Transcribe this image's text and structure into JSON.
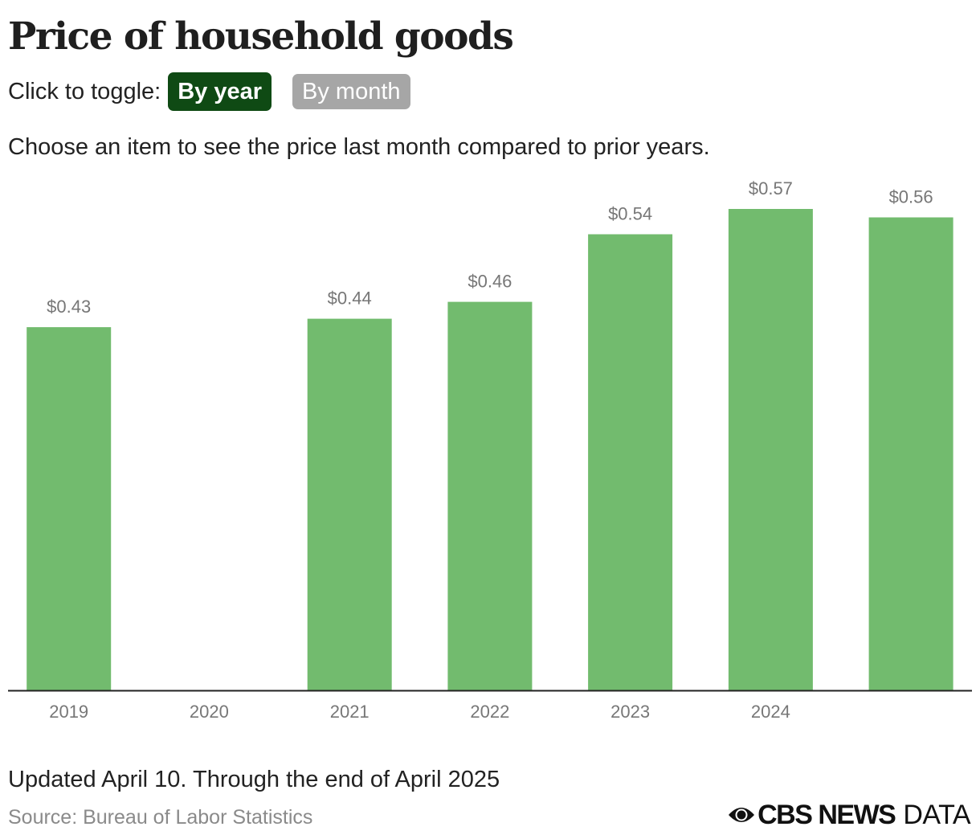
{
  "header": {
    "title": "Price of household goods",
    "toggle_label": "Click to toggle:",
    "toggle_options": [
      "By year",
      "By month"
    ],
    "active_toggle": "By year"
  },
  "subtitle": "Choose an item to see the price last month compared to prior years.",
  "footer": {
    "note": "Updated April 10. Through the end of April 2025",
    "source": "Source: Bureau of Labor Statistics",
    "logo_bold": "CBS NEWS",
    "logo_light": "DATA"
  },
  "colors": {
    "bar": "#72bb6e",
    "active_toggle_bg": "#0f4a14",
    "inactive_toggle_bg": "#a6a6a6",
    "label": "#777777"
  },
  "chart_data": {
    "type": "bar",
    "categories": [
      "2019",
      "2020",
      "2021",
      "2022",
      "2023",
      "2024",
      ""
    ],
    "values": [
      0.43,
      null,
      0.44,
      0.46,
      0.54,
      0.57,
      0.56
    ],
    "data_labels": [
      "$0.43",
      "",
      "$0.44",
      "$0.46",
      "$0.54",
      "$0.57",
      "$0.56"
    ],
    "title": "Price of household goods",
    "xlabel": "",
    "ylabel": "",
    "ylim": [
      0,
      0.57
    ],
    "grid": false,
    "legend": "none"
  }
}
